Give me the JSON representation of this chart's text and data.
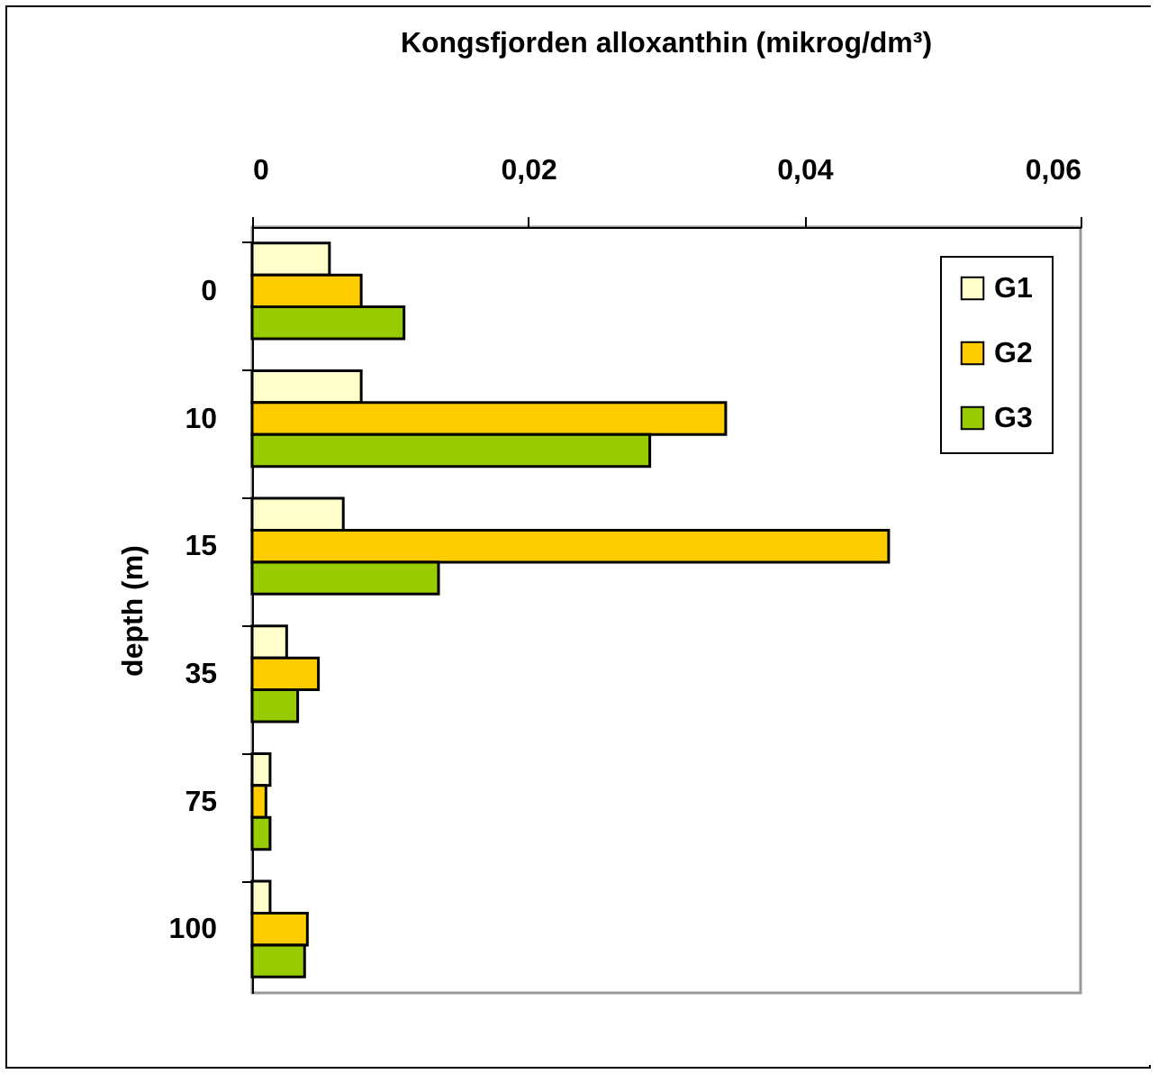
{
  "chart_data": {
    "type": "bar",
    "orientation": "horizontal",
    "title": "Kongsfjorden      alloxanthin     (mikrog/dm³)",
    "ylabel": "depth (m)",
    "categories": [
      "0",
      "10",
      "15",
      "35",
      "75",
      "100"
    ],
    "series": [
      {
        "name": "G1",
        "color": "#ffffcc",
        "values": [
          0.0056,
          0.0079,
          0.0066,
          0.0025,
          0.0013,
          0.0013
        ]
      },
      {
        "name": "G2",
        "color": "#ffcc00",
        "values": [
          0.0079,
          0.0343,
          0.0461,
          0.0048,
          0.001,
          0.004
        ]
      },
      {
        "name": "G3",
        "color": "#99cc00",
        "values": [
          0.011,
          0.0288,
          0.0135,
          0.0033,
          0.0013,
          0.0038
        ]
      }
    ],
    "xlim": [
      0,
      0.06
    ],
    "xticks": [
      {
        "value": 0,
        "label": "0"
      },
      {
        "value": 0.02,
        "label": "0,02"
      },
      {
        "value": 0.04,
        "label": "0,04"
      },
      {
        "value": 0.06,
        "label": "0,06"
      }
    ],
    "grid": false,
    "legend": "top right"
  }
}
